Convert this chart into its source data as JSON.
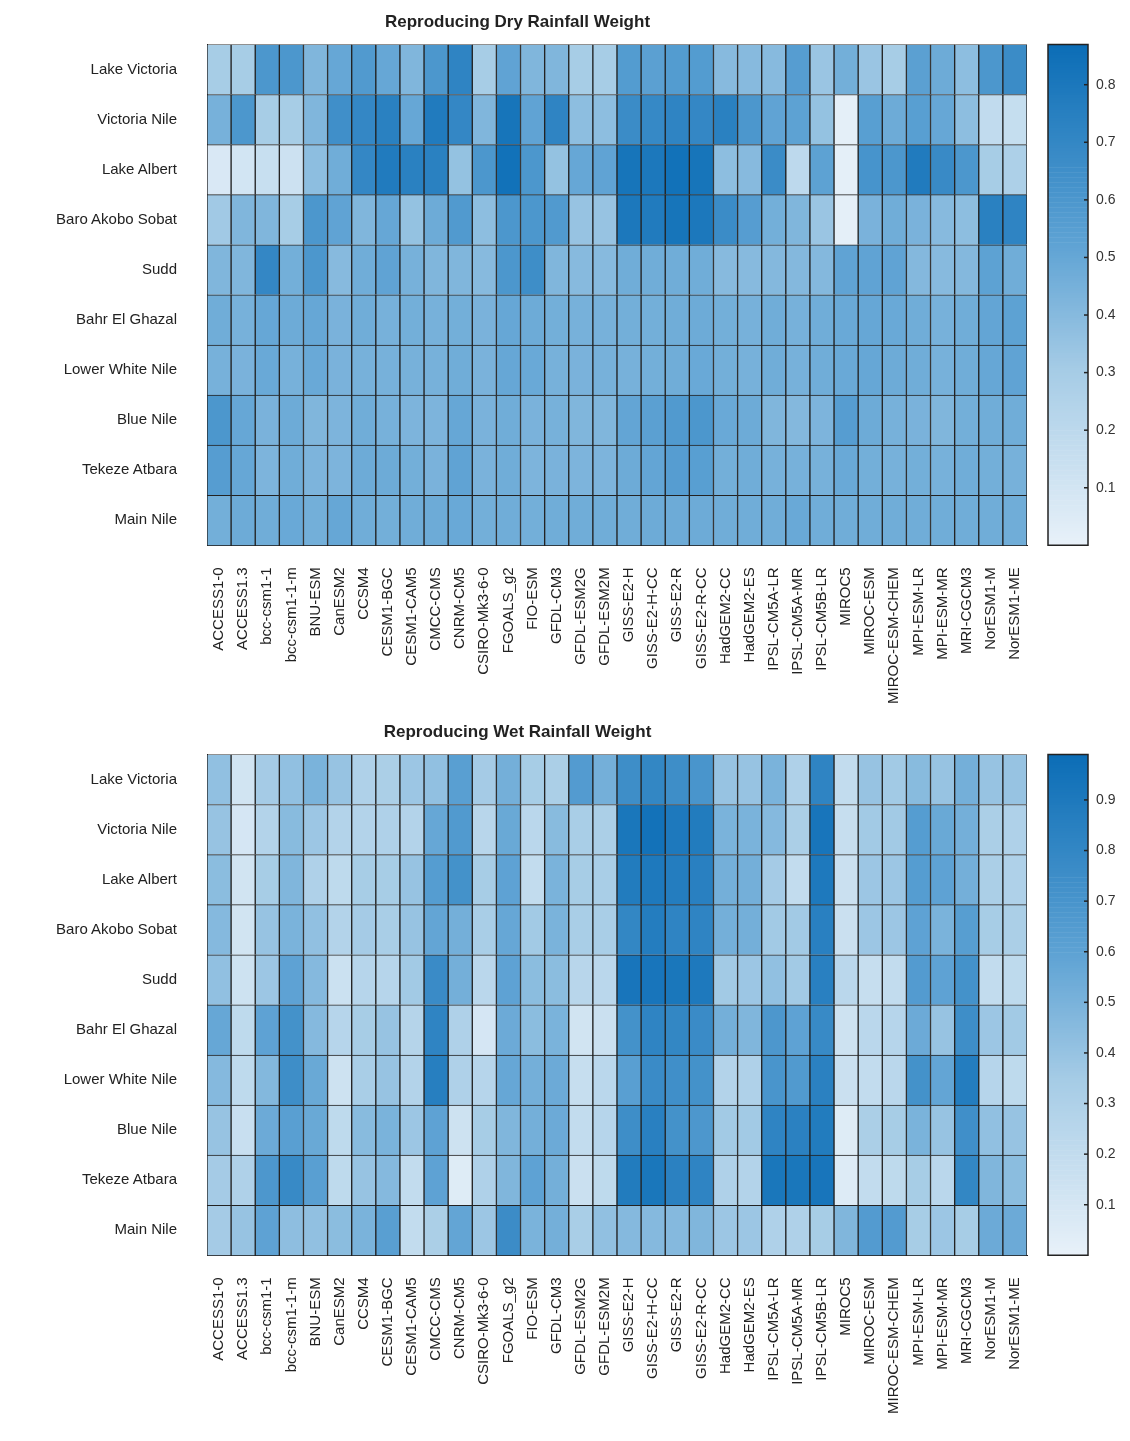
{
  "chart_data": [
    {
      "type": "heatmap",
      "title": "Reproducing Dry Rainfall Weight",
      "categories": [
        "ACCESS1-0",
        "ACCESS1.3",
        "bcc-csm1-1",
        "bcc-csm1-1-m",
        "BNU-ESM",
        "CanESM2",
        "CCSM4",
        "CESM1-BGC",
        "CESM1-CAM5",
        "CMCC-CMS",
        "CNRM-CM5",
        "CSIRO-Mk3-6-0",
        "FGOALS_g2",
        "FIO-ESM",
        "GFDL-CM3",
        "GFDL-ESM2G",
        "GFDL-ESM2M",
        "GISS-E2-H",
        "GISS-E2-H-CC",
        "GISS-E2-R",
        "GISS-E2-R-CC",
        "HadGEM2-CC",
        "HadGEM2-ES",
        "IPSL-CM5A-LR",
        "IPSL-CM5A-MR",
        "IPSL-CM5B-LR",
        "MIROC5",
        "MIROC-ESM",
        "MIROC-ESM-CHEM",
        "MPI-ESM-LR",
        "MPI-ESM-MR",
        "MRI-CGCM3",
        "NorESM1-M",
        "NorESM1-ME"
      ],
      "y_categories": [
        "Lake Victoria",
        "Victoria Nile",
        "Lake Albert",
        "Baro Akobo Sobat",
        "Sudd",
        "Bahr El Ghazal",
        "Lower White Nile",
        "Blue Nile",
        "Tekeze Atbara",
        "Main Nile"
      ],
      "cells": [
        [
          0.3,
          0.3,
          0.6,
          0.6,
          0.42,
          0.5,
          0.58,
          0.5,
          0.42,
          0.6,
          0.72,
          0.3,
          0.52,
          0.42,
          0.42,
          0.3,
          0.3,
          0.57,
          0.54,
          0.57,
          0.57,
          0.4,
          0.4,
          0.4,
          0.56,
          0.34,
          0.46,
          0.34,
          0.3,
          0.54,
          0.48,
          0.38,
          0.6,
          0.67
        ],
        [
          0.45,
          0.6,
          0.3,
          0.3,
          0.42,
          0.65,
          0.7,
          0.74,
          0.5,
          0.78,
          0.7,
          0.42,
          0.82,
          0.52,
          0.72,
          0.38,
          0.38,
          0.67,
          0.69,
          0.72,
          0.7,
          0.74,
          0.6,
          0.52,
          0.53,
          0.36,
          0.02,
          0.55,
          0.48,
          0.55,
          0.5,
          0.38,
          0.18,
          0.16
        ],
        [
          0.07,
          0.1,
          0.15,
          0.13,
          0.38,
          0.47,
          0.7,
          0.78,
          0.74,
          0.74,
          0.36,
          0.6,
          0.84,
          0.6,
          0.36,
          0.5,
          0.52,
          0.82,
          0.8,
          0.84,
          0.82,
          0.38,
          0.4,
          0.67,
          0.2,
          0.53,
          0.02,
          0.62,
          0.6,
          0.78,
          0.68,
          0.6,
          0.3,
          0.27
        ],
        [
          0.32,
          0.42,
          0.42,
          0.3,
          0.6,
          0.52,
          0.42,
          0.5,
          0.36,
          0.48,
          0.58,
          0.38,
          0.6,
          0.6,
          0.58,
          0.35,
          0.35,
          0.8,
          0.78,
          0.82,
          0.8,
          0.67,
          0.56,
          0.46,
          0.42,
          0.34,
          0.02,
          0.44,
          0.47,
          0.44,
          0.4,
          0.38,
          0.74,
          0.72
        ],
        [
          0.42,
          0.42,
          0.7,
          0.46,
          0.6,
          0.4,
          0.47,
          0.52,
          0.45,
          0.42,
          0.42,
          0.4,
          0.6,
          0.66,
          0.42,
          0.4,
          0.4,
          0.47,
          0.47,
          0.47,
          0.47,
          0.4,
          0.4,
          0.41,
          0.41,
          0.41,
          0.52,
          0.52,
          0.52,
          0.41,
          0.4,
          0.41,
          0.53,
          0.47
        ],
        [
          0.47,
          0.45,
          0.5,
          0.48,
          0.5,
          0.44,
          0.47,
          0.45,
          0.46,
          0.45,
          0.46,
          0.44,
          0.5,
          0.48,
          0.46,
          0.45,
          0.45,
          0.46,
          0.46,
          0.47,
          0.48,
          0.46,
          0.45,
          0.47,
          0.45,
          0.47,
          0.49,
          0.5,
          0.49,
          0.47,
          0.45,
          0.47,
          0.51,
          0.53
        ],
        [
          0.45,
          0.44,
          0.49,
          0.45,
          0.49,
          0.44,
          0.45,
          0.45,
          0.45,
          0.45,
          0.47,
          0.44,
          0.5,
          0.49,
          0.45,
          0.44,
          0.45,
          0.45,
          0.46,
          0.47,
          0.49,
          0.46,
          0.45,
          0.47,
          0.45,
          0.47,
          0.49,
          0.5,
          0.48,
          0.47,
          0.45,
          0.47,
          0.5,
          0.52
        ],
        [
          0.6,
          0.5,
          0.44,
          0.48,
          0.42,
          0.43,
          0.47,
          0.45,
          0.43,
          0.43,
          0.5,
          0.44,
          0.47,
          0.44,
          0.45,
          0.42,
          0.42,
          0.51,
          0.54,
          0.58,
          0.6,
          0.49,
          0.48,
          0.42,
          0.41,
          0.43,
          0.56,
          0.48,
          0.45,
          0.44,
          0.42,
          0.46,
          0.47,
          0.47
        ],
        [
          0.56,
          0.5,
          0.43,
          0.47,
          0.43,
          0.43,
          0.48,
          0.48,
          0.46,
          0.44,
          0.52,
          0.44,
          0.47,
          0.43,
          0.44,
          0.43,
          0.43,
          0.48,
          0.51,
          0.56,
          0.55,
          0.46,
          0.47,
          0.45,
          0.45,
          0.45,
          0.49,
          0.46,
          0.45,
          0.46,
          0.45,
          0.47,
          0.46,
          0.45
        ],
        [
          0.46,
          0.48,
          0.47,
          0.49,
          0.46,
          0.5,
          0.47,
          0.46,
          0.47,
          0.48,
          0.49,
          0.46,
          0.47,
          0.46,
          0.47,
          0.47,
          0.47,
          0.47,
          0.48,
          0.48,
          0.48,
          0.47,
          0.47,
          0.47,
          0.49,
          0.47,
          0.47,
          0.47,
          0.47,
          0.47,
          0.47,
          0.47,
          0.47,
          0.47
        ]
      ],
      "clim": [
        0,
        0.87
      ],
      "cticks": [
        0.1,
        0.2,
        0.3,
        0.4,
        0.5,
        0.6,
        0.7,
        0.8
      ]
    },
    {
      "type": "heatmap",
      "title": "Reproducing Wet Rainfall Weight",
      "categories": [
        "ACCESS1-0",
        "ACCESS1.3",
        "bcc-csm1-1",
        "bcc-csm1-1-m",
        "BNU-ESM",
        "CanESM2",
        "CCSM4",
        "CESM1-BGC",
        "CESM1-CAM5",
        "CMCC-CMS",
        "CNRM-CM5",
        "CSIRO-Mk3-6-0",
        "FGOALS_g2",
        "FIO-ESM",
        "GFDL-CM3",
        "GFDL-ESM2G",
        "GFDL-ESM2M",
        "GISS-E2-H",
        "GISS-E2-H-CC",
        "GISS-E2-R",
        "GISS-E2-R-CC",
        "HadGEM2-CC",
        "HadGEM2-ES",
        "IPSL-CM5A-LR",
        "IPSL-CM5A-MR",
        "IPSL-CM5B-LR",
        "MIROC5",
        "MIROC-ESM",
        "MIROC-ESM-CHEM",
        "MPI-ESM-LR",
        "MPI-ESM-MR",
        "MRI-CGCM3",
        "NorESM1-M",
        "NorESM1-ME"
      ],
      "y_categories": [
        "Lake Victoria",
        "Victoria Nile",
        "Lake Albert",
        "Baro Akobo Sobat",
        "Sudd",
        "Bahr El Ghazal",
        "Lower White Nile",
        "Blue Nile",
        "Tekeze Atbara",
        "Main Nile"
      ],
      "cells": [
        [
          0.42,
          0.12,
          0.35,
          0.42,
          0.5,
          0.4,
          0.3,
          0.32,
          0.38,
          0.42,
          0.62,
          0.35,
          0.52,
          0.34,
          0.32,
          0.65,
          0.52,
          0.75,
          0.8,
          0.75,
          0.7,
          0.4,
          0.4,
          0.5,
          0.3,
          0.82,
          0.2,
          0.4,
          0.36,
          0.45,
          0.4,
          0.52,
          0.4,
          0.4
        ],
        [
          0.4,
          0.1,
          0.28,
          0.45,
          0.38,
          0.28,
          0.28,
          0.3,
          0.28,
          0.57,
          0.66,
          0.25,
          0.56,
          0.24,
          0.45,
          0.33,
          0.32,
          0.92,
          0.95,
          0.9,
          0.88,
          0.5,
          0.5,
          0.46,
          0.32,
          0.93,
          0.18,
          0.36,
          0.36,
          0.64,
          0.56,
          0.52,
          0.32,
          0.3
        ],
        [
          0.44,
          0.12,
          0.34,
          0.48,
          0.3,
          0.22,
          0.34,
          0.34,
          0.4,
          0.64,
          0.72,
          0.34,
          0.6,
          0.2,
          0.5,
          0.34,
          0.33,
          0.88,
          0.9,
          0.87,
          0.85,
          0.52,
          0.52,
          0.35,
          0.2,
          0.9,
          0.16,
          0.38,
          0.38,
          0.64,
          0.6,
          0.52,
          0.32,
          0.3
        ],
        [
          0.46,
          0.12,
          0.4,
          0.5,
          0.42,
          0.28,
          0.35,
          0.33,
          0.4,
          0.58,
          0.52,
          0.33,
          0.57,
          0.36,
          0.5,
          0.33,
          0.33,
          0.8,
          0.87,
          0.82,
          0.82,
          0.52,
          0.52,
          0.36,
          0.36,
          0.85,
          0.16,
          0.38,
          0.38,
          0.6,
          0.5,
          0.63,
          0.34,
          0.32
        ],
        [
          0.42,
          0.14,
          0.38,
          0.6,
          0.46,
          0.15,
          0.26,
          0.26,
          0.36,
          0.77,
          0.52,
          0.24,
          0.6,
          0.44,
          0.44,
          0.25,
          0.24,
          0.93,
          0.93,
          0.92,
          0.9,
          0.36,
          0.38,
          0.42,
          0.36,
          0.85,
          0.24,
          0.18,
          0.2,
          0.65,
          0.6,
          0.72,
          0.2,
          0.22
        ],
        [
          0.57,
          0.22,
          0.6,
          0.72,
          0.46,
          0.26,
          0.34,
          0.4,
          0.27,
          0.82,
          0.3,
          0.1,
          0.55,
          0.44,
          0.5,
          0.12,
          0.16,
          0.72,
          0.82,
          0.8,
          0.77,
          0.52,
          0.48,
          0.68,
          0.6,
          0.78,
          0.14,
          0.24,
          0.26,
          0.55,
          0.4,
          0.75,
          0.38,
          0.36
        ],
        [
          0.46,
          0.22,
          0.47,
          0.75,
          0.56,
          0.14,
          0.33,
          0.4,
          0.28,
          0.86,
          0.3,
          0.26,
          0.57,
          0.52,
          0.55,
          0.18,
          0.24,
          0.62,
          0.77,
          0.74,
          0.72,
          0.28,
          0.3,
          0.7,
          0.66,
          0.84,
          0.16,
          0.2,
          0.24,
          0.72,
          0.58,
          0.87,
          0.26,
          0.22
        ],
        [
          0.4,
          0.17,
          0.55,
          0.62,
          0.56,
          0.22,
          0.45,
          0.5,
          0.38,
          0.6,
          0.14,
          0.34,
          0.48,
          0.52,
          0.55,
          0.2,
          0.26,
          0.75,
          0.85,
          0.72,
          0.68,
          0.36,
          0.36,
          0.82,
          0.84,
          0.88,
          0.05,
          0.32,
          0.34,
          0.5,
          0.4,
          0.74,
          0.42,
          0.4
        ],
        [
          0.35,
          0.3,
          0.68,
          0.78,
          0.62,
          0.22,
          0.4,
          0.46,
          0.2,
          0.6,
          0.05,
          0.3,
          0.48,
          0.6,
          0.52,
          0.16,
          0.22,
          0.88,
          0.92,
          0.84,
          0.82,
          0.3,
          0.28,
          0.92,
          0.92,
          0.93,
          0.06,
          0.2,
          0.22,
          0.34,
          0.24,
          0.8,
          0.48,
          0.44
        ],
        [
          0.35,
          0.4,
          0.6,
          0.43,
          0.42,
          0.44,
          0.5,
          0.62,
          0.2,
          0.32,
          0.58,
          0.38,
          0.76,
          0.5,
          0.52,
          0.33,
          0.42,
          0.46,
          0.46,
          0.46,
          0.48,
          0.38,
          0.38,
          0.3,
          0.3,
          0.34,
          0.48,
          0.65,
          0.65,
          0.34,
          0.38,
          0.34,
          0.55,
          0.55
        ]
      ],
      "clim": [
        0,
        0.99
      ],
      "cticks": [
        0.1,
        0.2,
        0.3,
        0.4,
        0.5,
        0.6,
        0.7,
        0.8,
        0.9
      ]
    }
  ]
}
